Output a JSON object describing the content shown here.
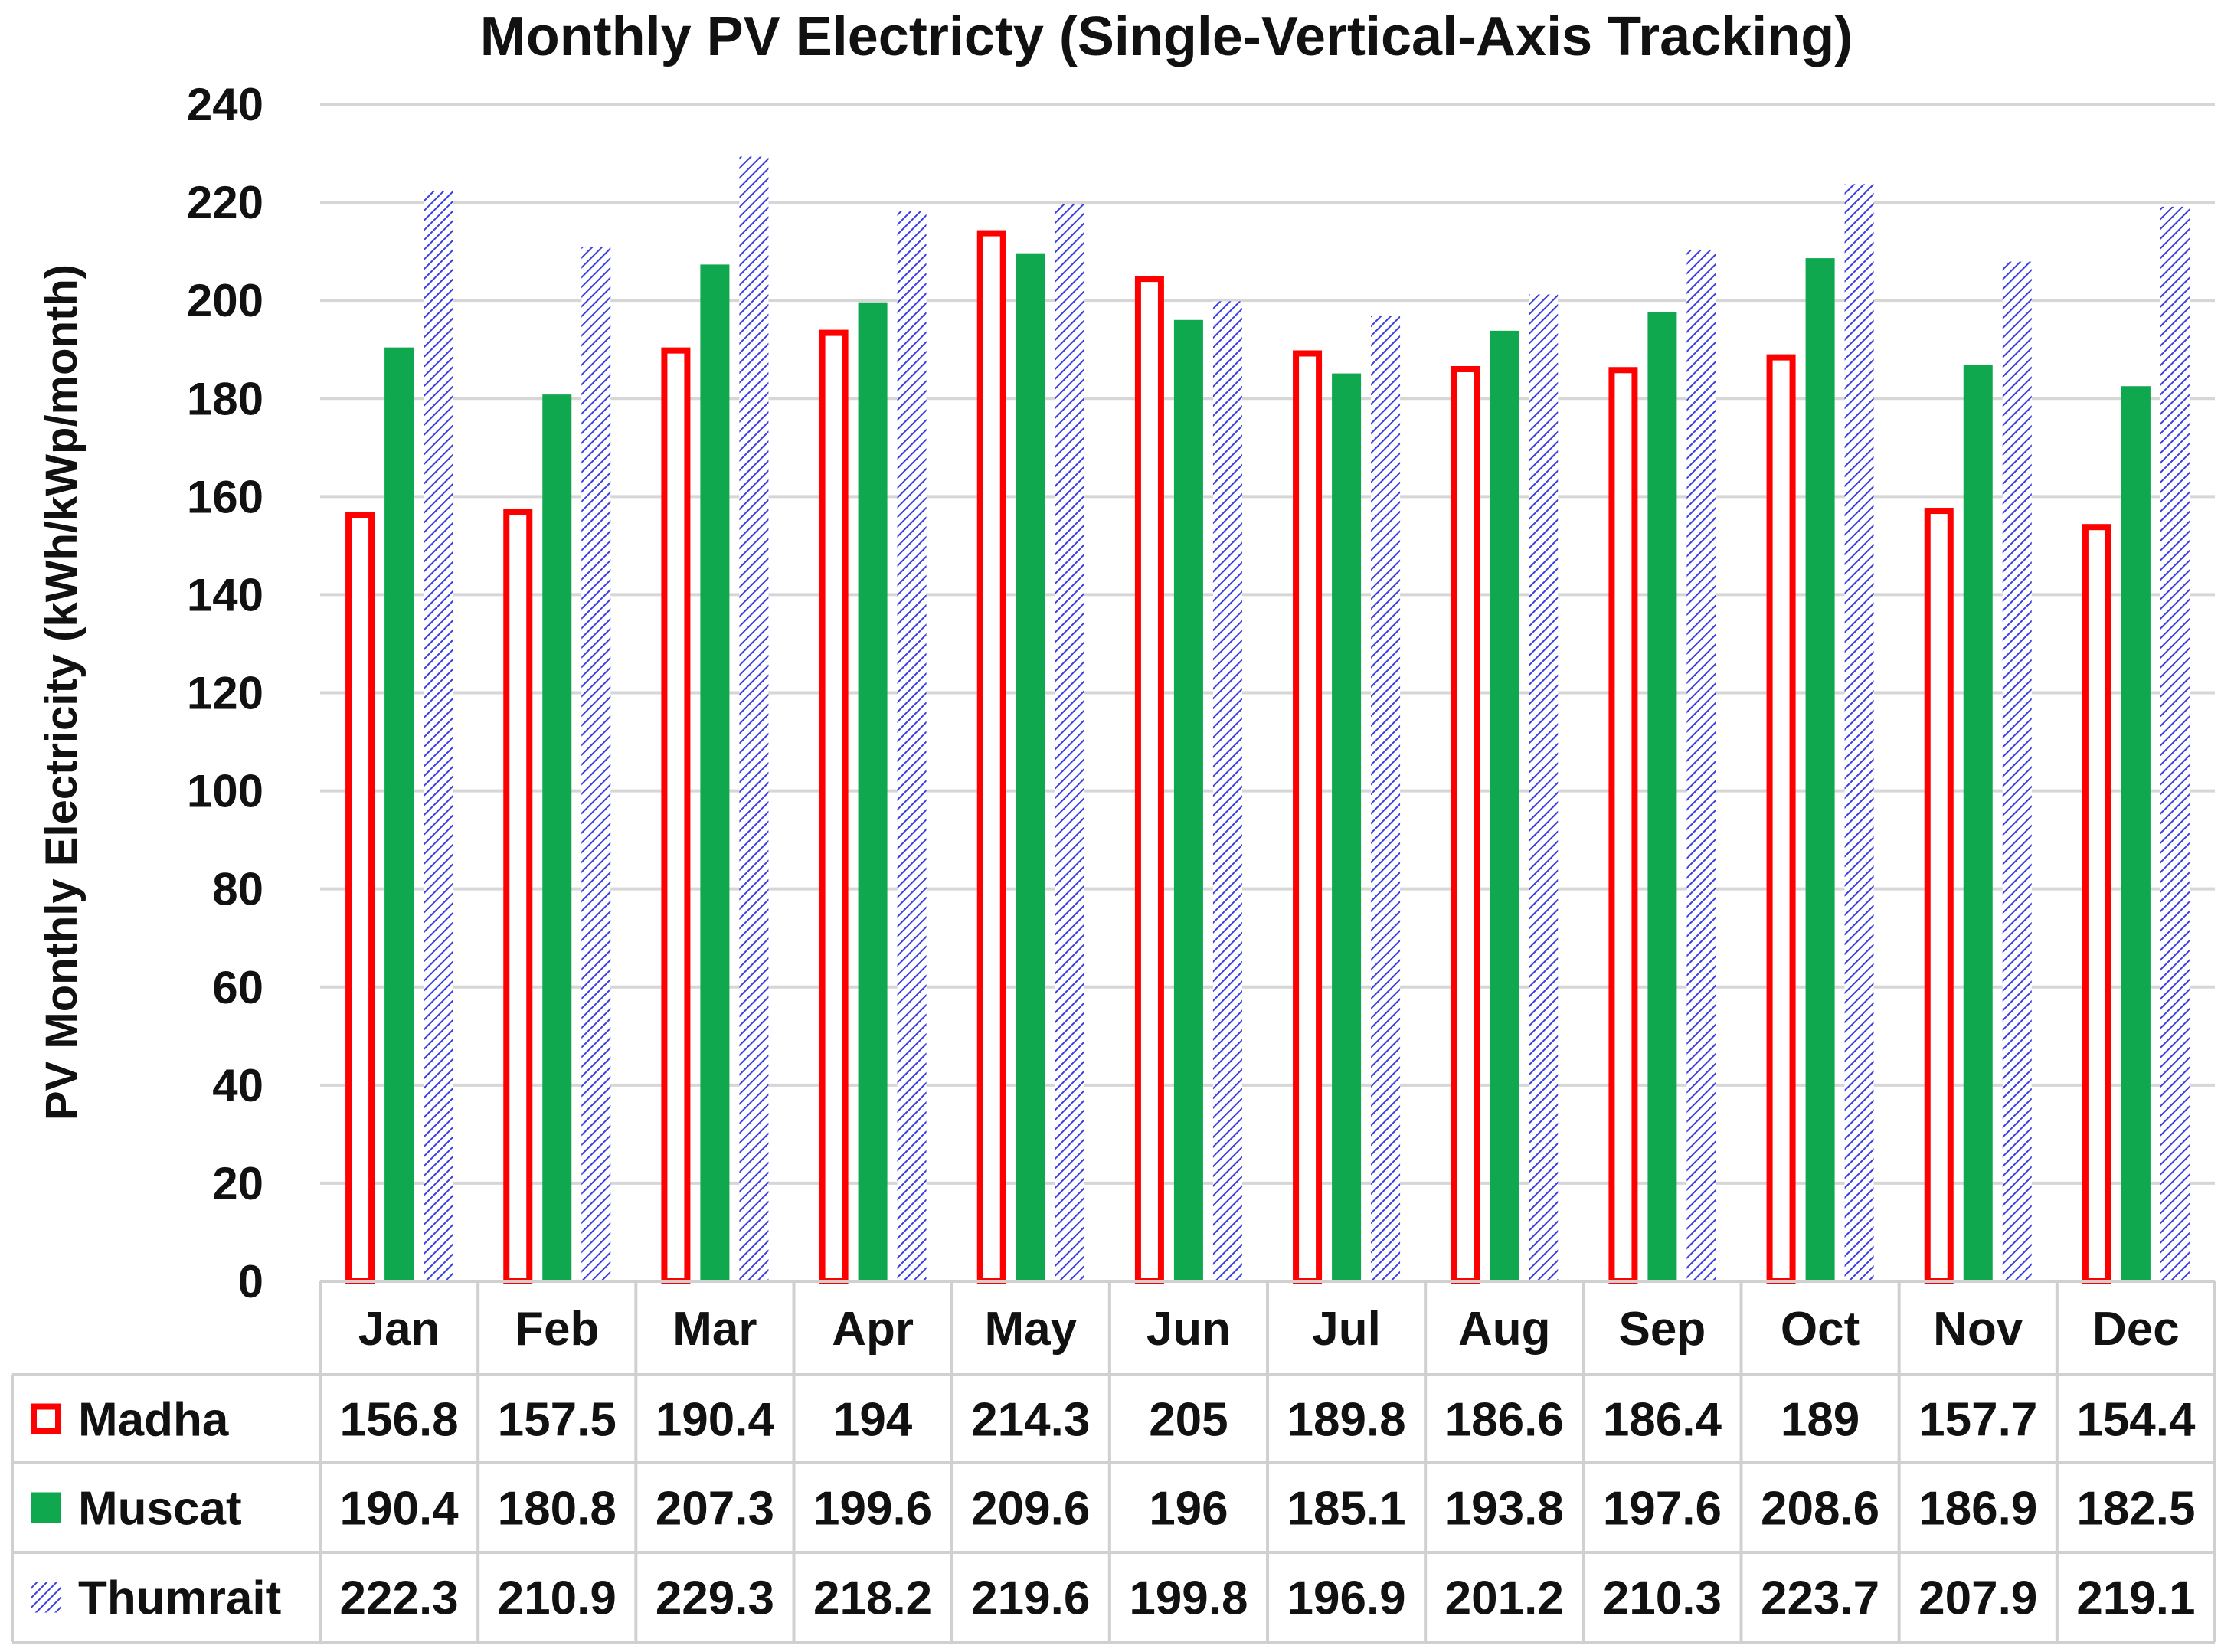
{
  "chart_data": {
    "type": "bar",
    "title": "Monthly PV Electricty (Single-Vertical-Axis Tracking)",
    "xlabel": "",
    "ylabel": "PV Monthly Electricity (kWh/kWp/month)",
    "ylim": [
      0,
      240
    ],
    "yticks": [
      "0",
      "20",
      "40",
      "60",
      "80",
      "100",
      "120",
      "140",
      "160",
      "180",
      "200",
      "220",
      "240"
    ],
    "grid": true,
    "legend_placement": "data-table-left",
    "categories": [
      "Jan",
      "Feb",
      "Mar",
      "Apr",
      "May",
      "Jun",
      "Jul",
      "Aug",
      "Sep",
      "Oct",
      "Nov",
      "Dec"
    ],
    "series": [
      {
        "name": "Madha",
        "style": "outline",
        "color": "#ff0000",
        "values": [
          156.8,
          157.5,
          190.4,
          194,
          214.3,
          205,
          189.8,
          186.6,
          186.4,
          189,
          157.7,
          154.4
        ],
        "labels": [
          "156.8",
          "157.5",
          "190.4",
          "194",
          "214.3",
          "205",
          "189.8",
          "186.6",
          "186.4",
          "189",
          "157.7",
          "154.4"
        ]
      },
      {
        "name": "Muscat",
        "style": "solid",
        "color": "#0fa84f",
        "values": [
          190.4,
          180.8,
          207.3,
          199.6,
          209.6,
          196,
          185.1,
          193.8,
          197.6,
          208.6,
          186.9,
          182.5
        ],
        "labels": [
          "190.4",
          "180.8",
          "207.3",
          "199.6",
          "209.6",
          "196",
          "185.1",
          "193.8",
          "197.6",
          "208.6",
          "186.9",
          "182.5"
        ]
      },
      {
        "name": "Thumrait",
        "style": "hatched",
        "color": "#3a3fe0",
        "values": [
          222.3,
          210.9,
          229.3,
          218.2,
          219.6,
          199.8,
          196.9,
          201.2,
          210.3,
          223.7,
          207.9,
          219.1
        ],
        "labels": [
          "222.3",
          "210.9",
          "229.3",
          "218.2",
          "219.6",
          "199.8",
          "196.9",
          "201.2",
          "210.3",
          "223.7",
          "207.9",
          "219.1"
        ]
      }
    ]
  }
}
